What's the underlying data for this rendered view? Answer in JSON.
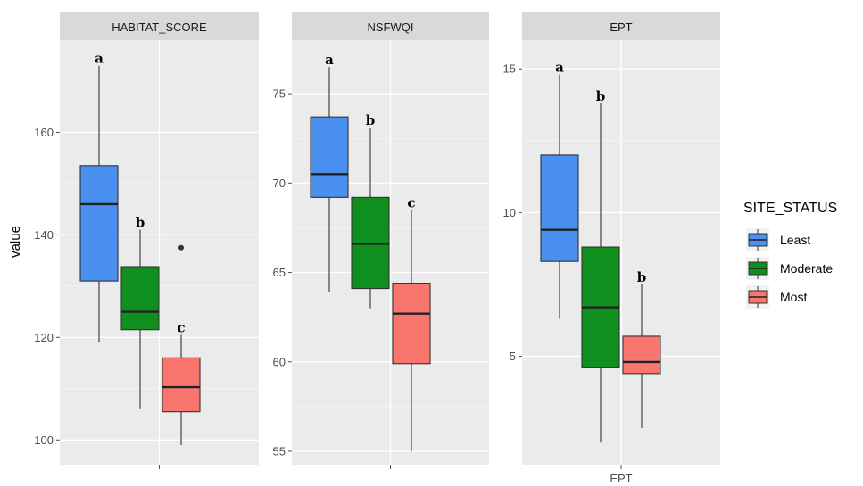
{
  "chart_data": {
    "type": "boxplot",
    "ylabel": "value",
    "legend": {
      "title": "SITE_STATUS",
      "position": "right",
      "entries": [
        {
          "name": "Least",
          "color": "#4a90f0"
        },
        {
          "name": "Moderate",
          "color": "#0f8f1e"
        },
        {
          "name": "Most",
          "color": "#f8766d"
        }
      ]
    },
    "grid": true,
    "panels": [
      {
        "strip": "HABITAT_SCORE",
        "xtick": "",
        "ylim": [
          95,
          178
        ],
        "yticks": [
          100,
          120,
          140,
          160
        ],
        "boxes": [
          {
            "group": "Least",
            "min": 119,
            "q1": 131,
            "median": 146,
            "q3": 153.5,
            "max": 173,
            "letter": "a",
            "outliers": []
          },
          {
            "group": "Moderate",
            "min": 106,
            "q1": 121.5,
            "median": 125,
            "q3": 133.8,
            "max": 141,
            "letter": "b",
            "outliers": []
          },
          {
            "group": "Most",
            "min": 99,
            "q1": 105.5,
            "median": 110.3,
            "q3": 116,
            "max": 120.5,
            "letter": "c",
            "outliers": [
              137.5
            ]
          }
        ]
      },
      {
        "strip": "NSFWQI",
        "xtick": "",
        "ylim": [
          54.2,
          78
        ],
        "yticks": [
          55,
          60,
          65,
          70,
          75
        ],
        "boxes": [
          {
            "group": "Least",
            "min": 63.9,
            "q1": 69.2,
            "median": 70.5,
            "q3": 73.7,
            "max": 76.5,
            "letter": "a",
            "outliers": []
          },
          {
            "group": "Moderate",
            "min": 63,
            "q1": 64.1,
            "median": 66.6,
            "q3": 69.2,
            "max": 73.1,
            "letter": "b",
            "outliers": []
          },
          {
            "group": "Most",
            "min": 55,
            "q1": 59.9,
            "median": 62.7,
            "q3": 64.4,
            "max": 68.5,
            "letter": "c",
            "outliers": []
          }
        ]
      },
      {
        "strip": "EPT",
        "xtick": "EPT",
        "ylim": [
          1.2,
          16
        ],
        "yticks": [
          5,
          10,
          15
        ],
        "boxes": [
          {
            "group": "Least",
            "min": 6.3,
            "q1": 8.3,
            "median": 9.4,
            "q3": 12,
            "max": 14.8,
            "letter": "a",
            "outliers": []
          },
          {
            "group": "Moderate",
            "min": 2,
            "q1": 4.6,
            "median": 6.7,
            "q3": 8.8,
            "max": 13.8,
            "letter": "b",
            "outliers": []
          },
          {
            "group": "Most",
            "min": 2.5,
            "q1": 4.4,
            "median": 4.8,
            "q3": 5.7,
            "max": 7.5,
            "letter": "b",
            "outliers": []
          }
        ]
      }
    ]
  }
}
